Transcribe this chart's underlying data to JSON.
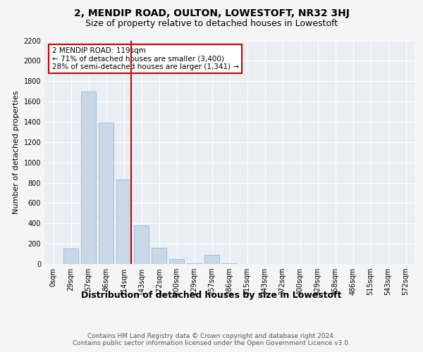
{
  "title": "2, MENDIP ROAD, OULTON, LOWESTOFT, NR32 3HJ",
  "subtitle": "Size of property relative to detached houses in Lowestoft",
  "xlabel": "Distribution of detached houses by size in Lowestoft",
  "ylabel": "Number of detached properties",
  "bar_labels": [
    "0sqm",
    "29sqm",
    "57sqm",
    "86sqm",
    "114sqm",
    "143sqm",
    "172sqm",
    "200sqm",
    "229sqm",
    "257sqm",
    "286sqm",
    "315sqm",
    "343sqm",
    "372sqm",
    "400sqm",
    "429sqm",
    "458sqm",
    "486sqm",
    "515sqm",
    "543sqm",
    "572sqm"
  ],
  "bar_values": [
    0,
    150,
    1700,
    1390,
    830,
    380,
    160,
    50,
    10,
    90,
    10,
    0,
    0,
    0,
    0,
    0,
    0,
    0,
    0,
    0,
    0
  ],
  "bar_color": "#c8d8e8",
  "bar_edge_color": "#a0b8cc",
  "vline_index": 4,
  "vline_color": "#cc0000",
  "annotation_text": "2 MENDIP ROAD: 119sqm\n← 71% of detached houses are smaller (3,400)\n28% of semi-detached houses are larger (1,341) →",
  "annotation_box_facecolor": "#ffffff",
  "annotation_box_edgecolor": "#cc0000",
  "ylim": [
    0,
    2200
  ],
  "yticks": [
    0,
    200,
    400,
    600,
    800,
    1000,
    1200,
    1400,
    1600,
    1800,
    2000,
    2200
  ],
  "fig_bg": "#f5f5f5",
  "plot_bg": "#e8eef4",
  "title_fontsize": 10,
  "subtitle_fontsize": 9,
  "xlabel_fontsize": 9,
  "ylabel_fontsize": 8,
  "tick_fontsize": 7,
  "annotation_fontsize": 7.5,
  "footer_fontsize": 6.5,
  "footer_text": "Contains HM Land Registry data © Crown copyright and database right 2024.\nContains public sector information licensed under the Open Government Licence v3.0."
}
